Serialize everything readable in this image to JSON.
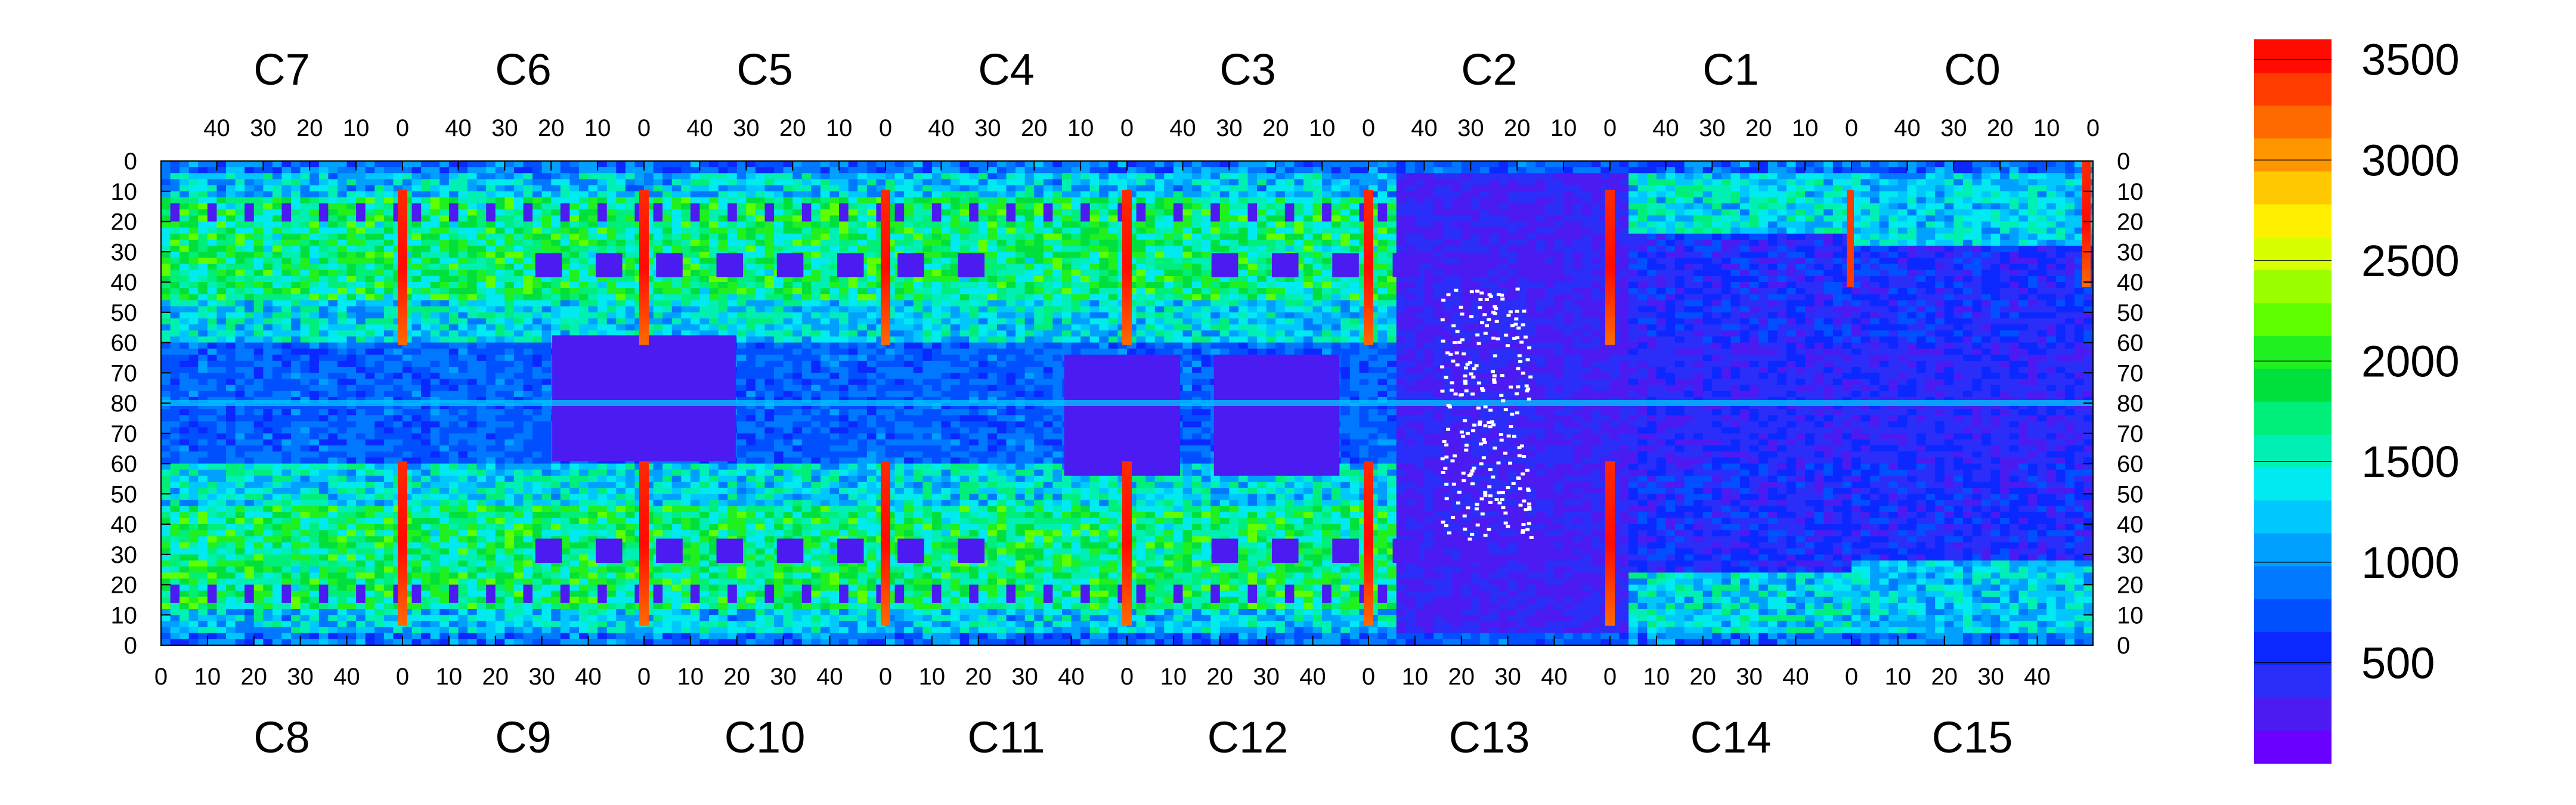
{
  "chart_data": {
    "type": "heatmap",
    "top_chips": [
      "C7",
      "C6",
      "C5",
      "C4",
      "C3",
      "C2",
      "C1",
      "C0"
    ],
    "bottom_chips": [
      "C8",
      "C9",
      "C10",
      "C11",
      "C12",
      "C13",
      "C14",
      "C15"
    ],
    "top_x_tick_labels": [
      "40",
      "30",
      "20",
      "10",
      "0"
    ],
    "bottom_x_tick_labels": [
      "0",
      "10",
      "20",
      "30",
      "40"
    ],
    "y_tick_labels": [
      "0",
      "10",
      "20",
      "30",
      "40",
      "50",
      "60",
      "70",
      "80",
      "70",
      "60",
      "50",
      "40",
      "30",
      "20",
      "10",
      "0"
    ],
    "colorbar": {
      "min": 0,
      "max": 3600,
      "tick_labels": [
        "500",
        "1000",
        "1500",
        "2000",
        "2500",
        "3000",
        "3500"
      ],
      "tick_values": [
        500,
        1000,
        1500,
        2000,
        2500,
        3000,
        3500
      ],
      "palette": [
        "#6a00ff",
        "#4b1bf2",
        "#2a2ef8",
        "#0a28ff",
        "#0050ff",
        "#0078ff",
        "#00a0ff",
        "#00c8ff",
        "#00eaf0",
        "#00f0b4",
        "#00ee7a",
        "#00e03c",
        "#20f020",
        "#60ff00",
        "#9cff00",
        "#d8ff00",
        "#fff000",
        "#ffc800",
        "#ff9600",
        "#ff6a00",
        "#ff3c00",
        "#ff0a00"
      ]
    },
    "columns_per_chip": 52,
    "rows_per_half": 80,
    "hot_columns": "channel 0 of every chip boundary shows values ~3000-3600 in the top and bottom bands",
    "dead_region": "chip C13/C2 right half and C14/C1 left half mostly below 500 with scattered zero (white) pixels",
    "bright_bands_rows": [
      15,
      60
    ],
    "background_rows": [
      62,
      80
    ]
  }
}
